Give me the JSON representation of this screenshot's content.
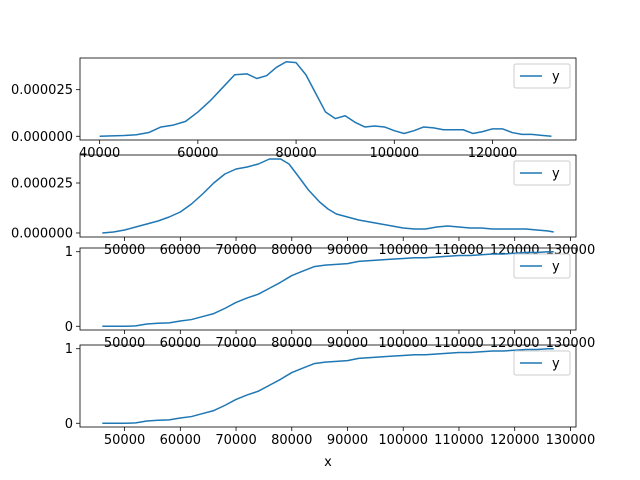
{
  "chart_data": [
    {
      "type": "line",
      "xlabel": "",
      "ylabel": "",
      "xlim": [
        36000,
        137000
      ],
      "ylim": [
        -2e-06,
        4.2e-05
      ],
      "xticks": [
        40000,
        60000,
        80000,
        100000,
        120000
      ],
      "xtick_labels": [
        "40000",
        "60000",
        "80000",
        "100000",
        "120000"
      ],
      "yticks": [
        0.0,
        2.5e-05
      ],
      "ytick_labels": [
        "0.000000",
        "0.000025"
      ],
      "legend": "upper-right",
      "series": [
        {
          "name": "y",
          "color": "#1f77b4",
          "x": [
            40000,
            42500,
            45000,
            47500,
            50000,
            52500,
            55000,
            57500,
            60000,
            62500,
            65000,
            67500,
            70000,
            72000,
            74000,
            76000,
            78000,
            80000,
            82000,
            84000,
            86000,
            88000,
            90000,
            92000,
            94000,
            96000,
            98000,
            100000,
            102000,
            104000,
            106000,
            108000,
            110000,
            112000,
            114000,
            116000,
            118000,
            120000,
            122000,
            124000,
            126000,
            128000,
            130000,
            132000
          ],
          "y": [
            0.0,
            2e-07,
            4e-07,
            8e-07,
            2e-06,
            5e-06,
            6e-06,
            8e-06,
            1.3e-05,
            1.9e-05,
            2.6e-05,
            3.3e-05,
            3.35e-05,
            3.1e-05,
            3.25e-05,
            3.7e-05,
            4e-05,
            3.95e-05,
            3.3e-05,
            2.3e-05,
            1.3e-05,
            9.5e-06,
            1.1e-05,
            7.5e-06,
            5e-06,
            5.5e-06,
            5e-06,
            3e-06,
            1.5e-06,
            3e-06,
            5e-06,
            4.5e-06,
            3.5e-06,
            3.5e-06,
            3.5e-06,
            1.5e-06,
            2.5e-06,
            4e-06,
            4e-06,
            2e-06,
            1e-06,
            1e-06,
            5e-07,
            0.0
          ]
        }
      ]
    },
    {
      "type": "line",
      "xlabel": "",
      "ylabel": "",
      "xlim": [
        42000,
        131000
      ],
      "ylim": [
        -2e-06,
        3.9e-05
      ],
      "xticks": [
        50000,
        60000,
        70000,
        80000,
        90000,
        100000,
        110000,
        120000,
        130000
      ],
      "xtick_labels": [
        "50000",
        "60000",
        "70000",
        "80000",
        "90000",
        "100000",
        "110000",
        "120000",
        "130000"
      ],
      "yticks": [
        0.0,
        2.5e-05
      ],
      "ytick_labels": [
        "0.000000",
        "0.000025"
      ],
      "legend": "upper-right",
      "series": [
        {
          "name": "y",
          "color": "#1f77b4",
          "x": [
            46000,
            48000,
            50000,
            52000,
            54000,
            56000,
            58000,
            60000,
            62000,
            64000,
            66000,
            68000,
            70000,
            72000,
            74000,
            76000,
            78000,
            79500,
            81000,
            83000,
            85000,
            86500,
            88000,
            90000,
            92000,
            94000,
            96000,
            98000,
            100000,
            102000,
            104000,
            106000,
            108000,
            110000,
            112000,
            114000,
            116000,
            118000,
            120000,
            122000,
            124000,
            126000,
            127000
          ],
          "y": [
            0.0,
            5e-07,
            1.5e-06,
            3e-06,
            4.5e-06,
            6e-06,
            8e-06,
            1.05e-05,
            1.45e-05,
            1.95e-05,
            2.5e-05,
            2.95e-05,
            3.2e-05,
            3.3e-05,
            3.45e-05,
            3.7e-05,
            3.7e-05,
            3.45e-05,
            2.9e-05,
            2.15e-05,
            1.55e-05,
            1.2e-05,
            9.5e-06,
            8e-06,
            6.5e-06,
            5.5e-06,
            4.5e-06,
            3.5e-06,
            2.5e-06,
            2e-06,
            2e-06,
            3e-06,
            3.5e-06,
            3e-06,
            2.5e-06,
            2.5e-06,
            2e-06,
            2e-06,
            2e-06,
            2e-06,
            1.5e-06,
            1e-06,
            5e-07
          ]
        }
      ]
    },
    {
      "type": "line",
      "xlabel": "",
      "ylabel": "",
      "xlim": [
        42000,
        131000
      ],
      "ylim": [
        -0.05,
        1.05
      ],
      "xticks": [
        50000,
        60000,
        70000,
        80000,
        90000,
        100000,
        110000,
        120000,
        130000
      ],
      "xtick_labels": [
        "50000",
        "60000",
        "70000",
        "80000",
        "90000",
        "100000",
        "110000",
        "120000",
        "130000"
      ],
      "yticks": [
        0,
        1
      ],
      "ytick_labels": [
        "0",
        "1"
      ],
      "legend": "upper-right",
      "series": [
        {
          "name": "y",
          "color": "#1f77b4",
          "x": [
            46000,
            48000,
            50000,
            52000,
            54000,
            56000,
            58000,
            60000,
            62000,
            64000,
            66000,
            68000,
            70000,
            72000,
            74000,
            76000,
            78000,
            80000,
            82000,
            84000,
            86000,
            88000,
            90000,
            92000,
            94000,
            96000,
            98000,
            100000,
            102000,
            104000,
            106000,
            108000,
            110000,
            112000,
            114000,
            116000,
            118000,
            120000,
            122000,
            124000,
            126000,
            127000
          ],
          "y": [
            0.0,
            0.0,
            0.0,
            0.005,
            0.03,
            0.04,
            0.045,
            0.07,
            0.09,
            0.13,
            0.17,
            0.24,
            0.32,
            0.38,
            0.43,
            0.51,
            0.59,
            0.68,
            0.74,
            0.8,
            0.82,
            0.83,
            0.84,
            0.87,
            0.88,
            0.89,
            0.9,
            0.91,
            0.92,
            0.92,
            0.93,
            0.94,
            0.95,
            0.95,
            0.96,
            0.97,
            0.97,
            0.98,
            0.99,
            0.99,
            1.0,
            1.0
          ]
        }
      ]
    },
    {
      "type": "line",
      "xlabel": "x",
      "ylabel": "",
      "xlim": [
        42000,
        131000
      ],
      "ylim": [
        -0.05,
        1.05
      ],
      "xticks": [
        50000,
        60000,
        70000,
        80000,
        90000,
        100000,
        110000,
        120000,
        130000
      ],
      "xtick_labels": [
        "50000",
        "60000",
        "70000",
        "80000",
        "90000",
        "100000",
        "110000",
        "120000",
        "130000"
      ],
      "yticks": [
        0,
        1
      ],
      "ytick_labels": [
        "0",
        "1"
      ],
      "legend": "upper-right",
      "series": [
        {
          "name": "y",
          "color": "#1f77b4",
          "x": [
            46000,
            48000,
            50000,
            52000,
            54000,
            56000,
            58000,
            60000,
            62000,
            64000,
            66000,
            68000,
            70000,
            72000,
            74000,
            76000,
            78000,
            80000,
            82000,
            84000,
            86000,
            88000,
            90000,
            92000,
            94000,
            96000,
            98000,
            100000,
            102000,
            104000,
            106000,
            108000,
            110000,
            112000,
            114000,
            116000,
            118000,
            120000,
            122000,
            124000,
            126000,
            127000
          ],
          "y": [
            0.0,
            0.0,
            0.0,
            0.005,
            0.03,
            0.04,
            0.045,
            0.07,
            0.09,
            0.13,
            0.17,
            0.24,
            0.32,
            0.38,
            0.43,
            0.51,
            0.59,
            0.68,
            0.74,
            0.8,
            0.82,
            0.83,
            0.84,
            0.87,
            0.88,
            0.89,
            0.9,
            0.91,
            0.92,
            0.92,
            0.93,
            0.94,
            0.95,
            0.95,
            0.96,
            0.97,
            0.97,
            0.98,
            0.99,
            0.99,
            1.0,
            1.0
          ]
        }
      ]
    }
  ]
}
